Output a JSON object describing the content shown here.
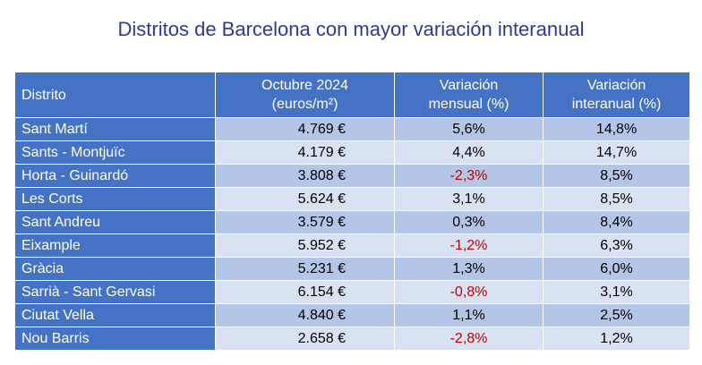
{
  "title": "Distritos de Barcelona con mayor variación interanual",
  "headers": {
    "district": "Distrito",
    "price_line1": "Octubre 2024",
    "price_line2": "(euros/m²)",
    "monthly_line1": "Variación",
    "monthly_line2": "mensual (%)",
    "yearly_line1": "Variación",
    "yearly_line2": "interanual (%)"
  },
  "colors": {
    "header_bg": "#4472c4",
    "row_dark": "#b4c6e7",
    "row_light": "#d9e2f3",
    "negative": "#c00000",
    "title": "#2a3a9a"
  },
  "rows": [
    {
      "district": "Sant Martí",
      "price": "4.769 €",
      "monthly": "5,6%",
      "yearly": "14,8%"
    },
    {
      "district": "Sants - Montjuïc",
      "price": "4.179 €",
      "monthly": "4,4%",
      "yearly": "14,7%"
    },
    {
      "district": "Horta - Guinardó",
      "price": "3.808 €",
      "monthly": "-2,3%",
      "yearly": "8,5%"
    },
    {
      "district": "Les Corts",
      "price": "5.624 €",
      "monthly": "3,1%",
      "yearly": "8,5%"
    },
    {
      "district": "Sant Andreu",
      "price": "3.579 €",
      "monthly": "0,3%",
      "yearly": "8,4%"
    },
    {
      "district": "Eixample",
      "price": "5.952 €",
      "monthly": "-1,2%",
      "yearly": "6,3%"
    },
    {
      "district": "Gràcia",
      "price": "5.231 €",
      "monthly": "1,3%",
      "yearly": "6,0%"
    },
    {
      "district": "Sarrià - Sant Gervasi",
      "price": "6.154 €",
      "monthly": "-0,8%",
      "yearly": "3,1%"
    },
    {
      "district": "Ciutat Vella",
      "price": "4.840 €",
      "monthly": "1,1%",
      "yearly": "2,5%"
    },
    {
      "district": "Nou Barris",
      "price": "2.658 €",
      "monthly": "-2,8%",
      "yearly": "1,2%"
    }
  ]
}
